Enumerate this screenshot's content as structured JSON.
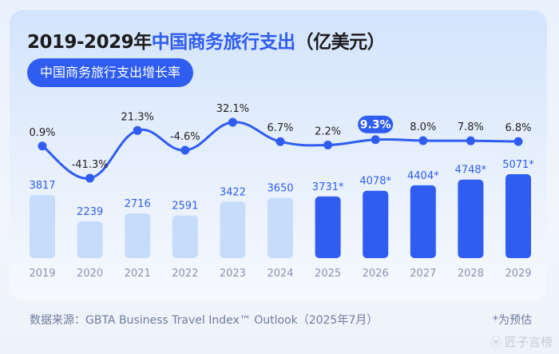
{
  "title": {
    "prefix": "2019-2029年",
    "highlight": "中国商务旅行支出",
    "suffix": "（亿美元）"
  },
  "legend_pill": "中国商务旅行支出增长率",
  "footer": {
    "source": "数据来源：GBTA Business Travel Index™ Outlook（2025年7月）",
    "note": "*为预估"
  },
  "watermark": {
    "icon": "weibo-icon",
    "text": "匠子言榜"
  },
  "colors": {
    "accent": "#2f5df2",
    "bar_actual": "#c5ddfa",
    "bar_forecast": "#2f5df2",
    "value_text": "#2f5df2",
    "axis_text": "#8a93ae"
  },
  "chart_data": {
    "type": "bar",
    "title": "2019-2029年中国商务旅行支出（亿美元）",
    "xlabel": "",
    "ylabel": "亿美元",
    "categories": [
      "2019",
      "2020",
      "2021",
      "2022",
      "2023",
      "2024",
      "2025",
      "2026",
      "2027",
      "2028",
      "2029"
    ],
    "series": [
      {
        "name": "中国商务旅行支出",
        "type": "bar",
        "values": [
          3817,
          2239,
          2716,
          2591,
          3422,
          3650,
          3731,
          4078,
          4404,
          4748,
          5071
        ],
        "labels": [
          "3817",
          "2239",
          "2716",
          "2591",
          "3422",
          "3650",
          "3731*",
          "4078*",
          "4404*",
          "4748*",
          "5071*"
        ],
        "forecast": [
          false,
          false,
          false,
          false,
          false,
          false,
          true,
          true,
          true,
          true,
          true
        ]
      },
      {
        "name": "中国商务旅行支出增长率",
        "type": "line",
        "values": [
          0.9,
          -41.3,
          21.3,
          -4.6,
          32.1,
          6.7,
          2.2,
          9.3,
          8.0,
          7.8,
          6.8
        ],
        "labels": [
          "0.9%",
          "-41.3%",
          "21.3%",
          "-4.6%",
          "32.1%",
          "6.7%",
          "2.2%",
          "9.3%",
          "8.0%",
          "7.8%",
          "6.8%"
        ],
        "highlighted_index": 7
      }
    ],
    "ylim": [
      0,
      5500
    ],
    "grid": false,
    "legend": "top-left"
  }
}
